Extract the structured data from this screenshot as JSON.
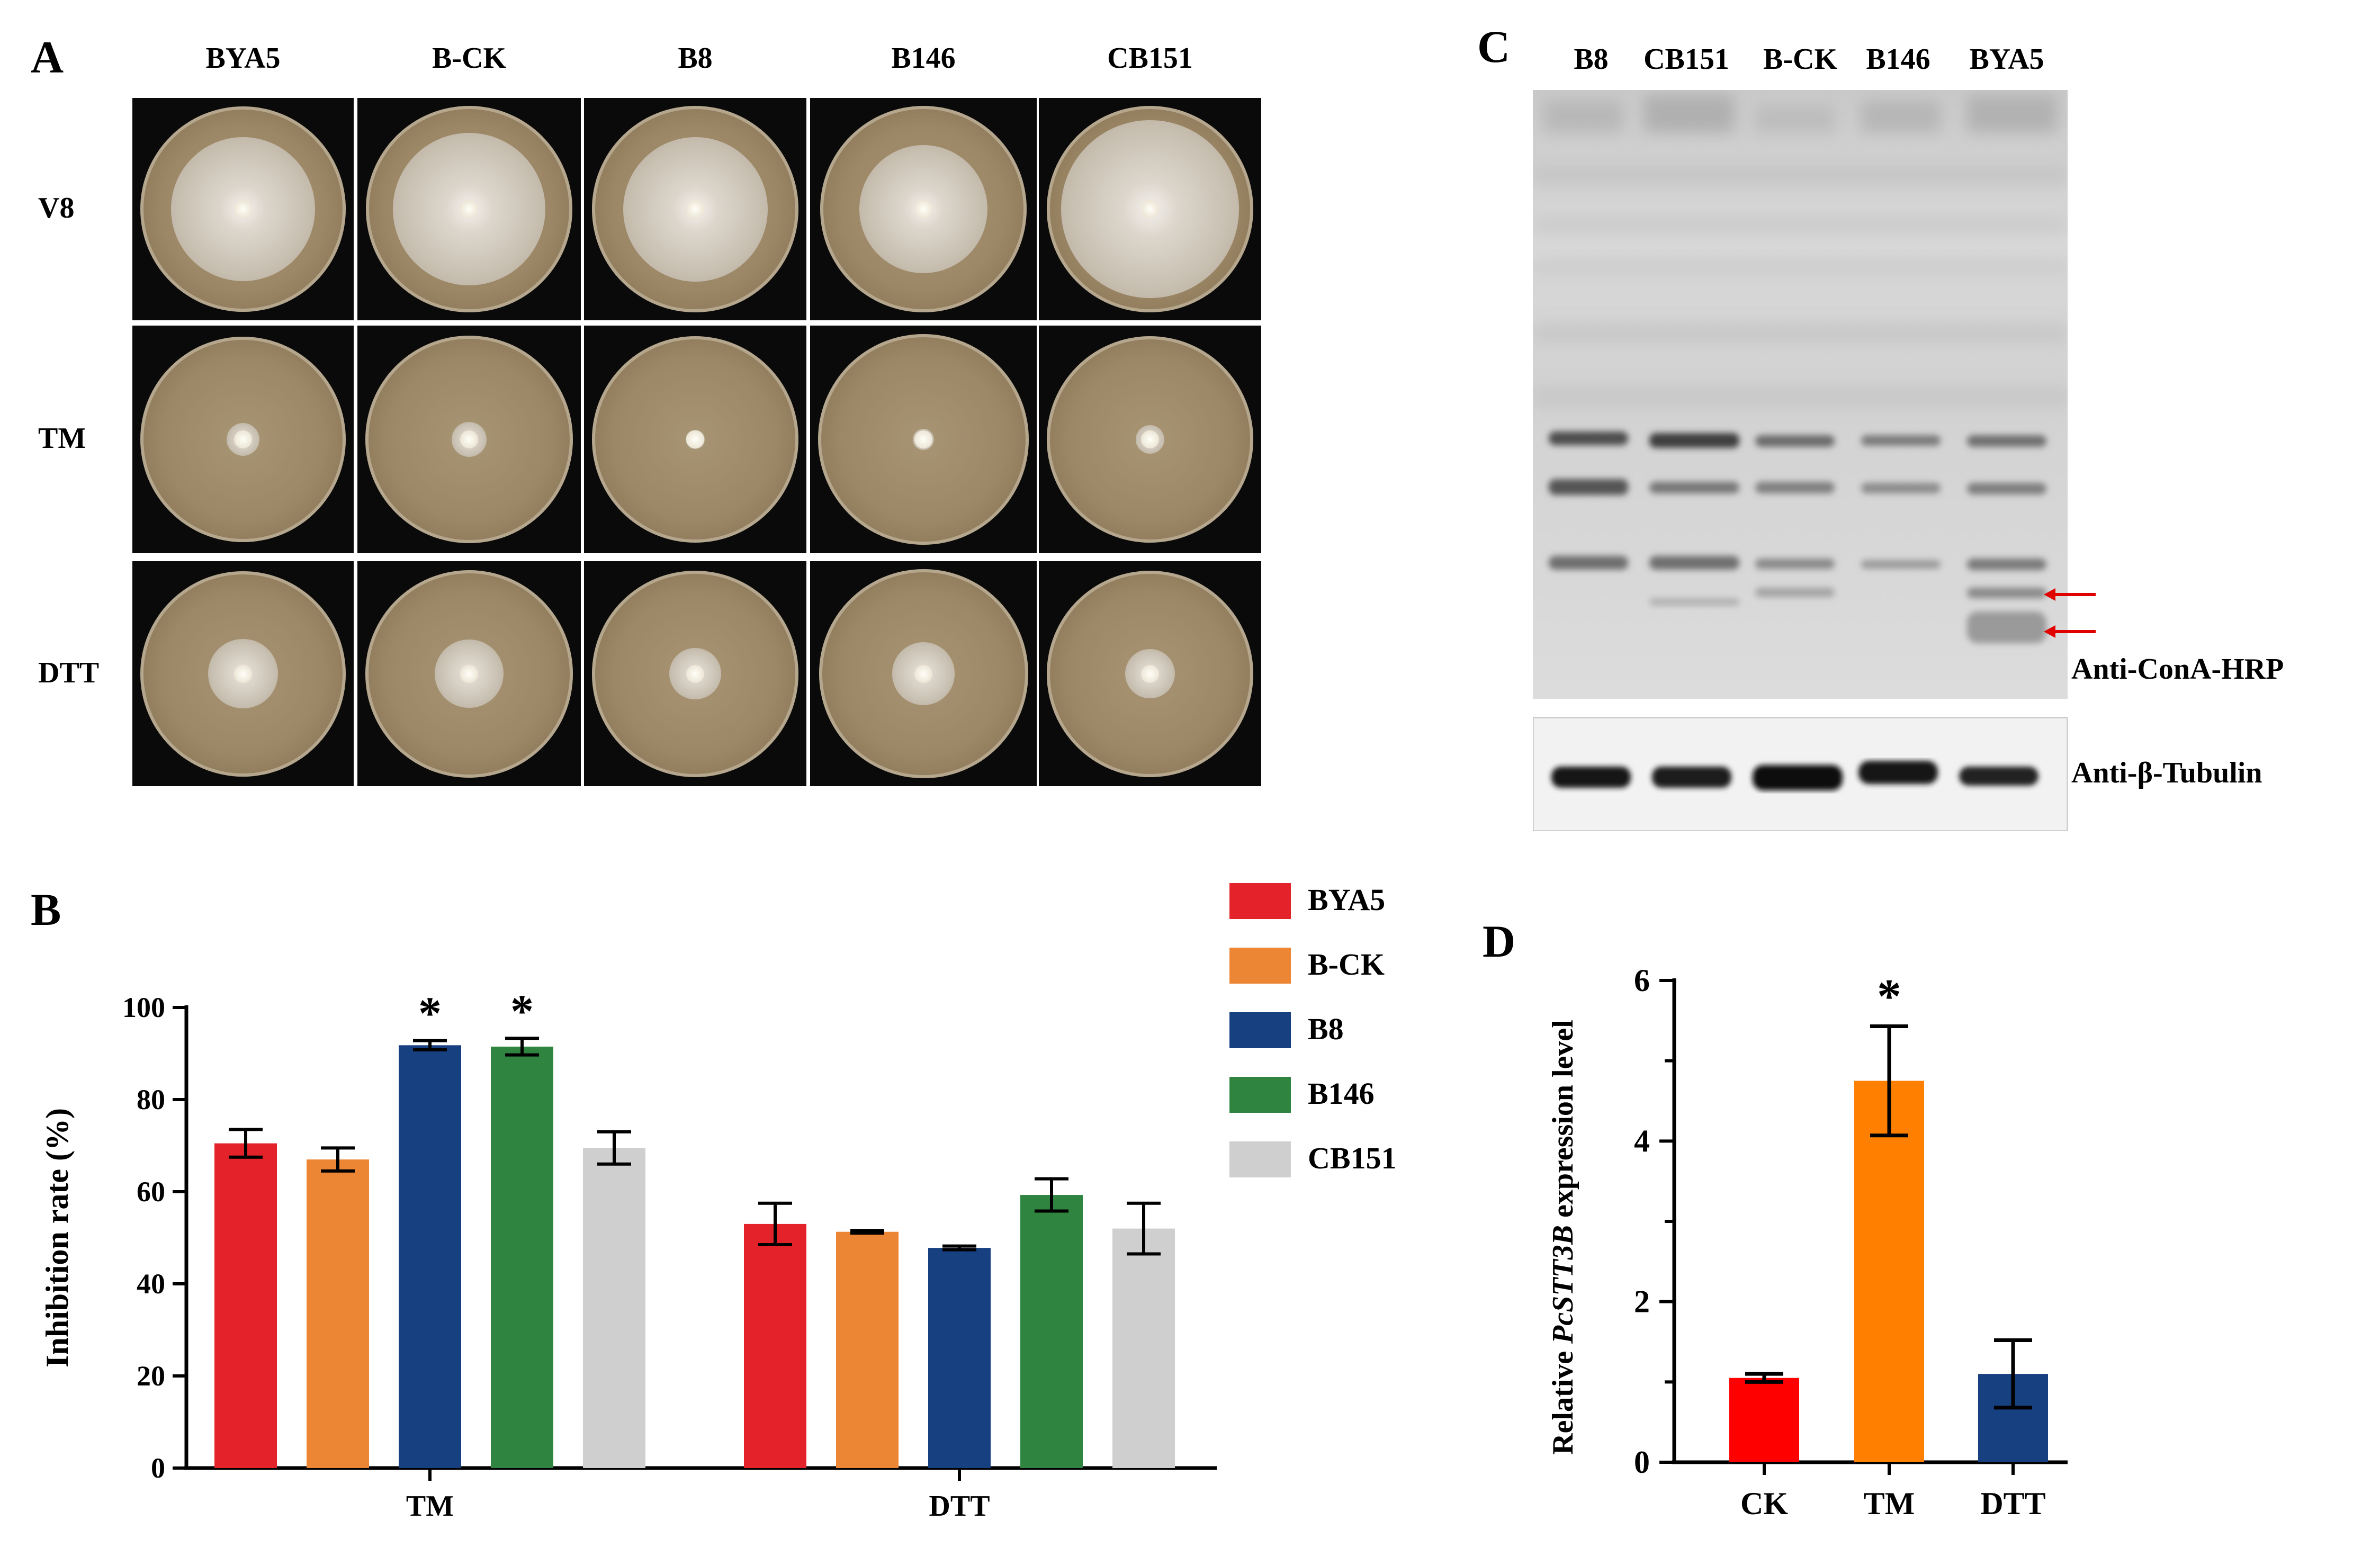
{
  "panels": {
    "A": {
      "letter": "A",
      "columns": [
        "BYA5",
        "B-CK",
        "B8",
        "B146",
        "CB151"
      ],
      "rows": [
        "V8",
        "TM",
        "DTT"
      ]
    },
    "B": {
      "letter": "B",
      "legend": [
        "BYA5",
        "B-CK",
        "B8",
        "B146",
        "CB151"
      ]
    },
    "C": {
      "letter": "C",
      "lanes": [
        "B8",
        "CB151",
        "B-CK",
        "B146",
        "BYA5"
      ],
      "blot_labels": [
        "Anti-ConA-HRP",
        "Anti-β-Tubulin"
      ]
    },
    "D": {
      "letter": "D"
    }
  },
  "colors": {
    "BYA5": "#e32329",
    "B-CK": "#ed8634",
    "B8": "#174081",
    "B146": "#2f8540",
    "CB151": "#cfcfcf",
    "D_CK": "#ff0000",
    "D_TM": "#ff8000",
    "D_DTT": "#174081",
    "arrow": "#e00000"
  },
  "chart_data": [
    {
      "panel": "B",
      "type": "bar",
      "categories": [
        "TM",
        "DTT"
      ],
      "ylabel": "Inhibition rate (%)",
      "ylim": [
        0,
        100
      ],
      "yticks": [
        0,
        20,
        40,
        60,
        80,
        100
      ],
      "series": [
        {
          "name": "BYA5",
          "values": [
            70.5,
            53.0
          ],
          "errors": [
            3.0,
            4.5
          ]
        },
        {
          "name": "B-CK",
          "values": [
            67.0,
            51.3
          ],
          "errors": [
            2.5,
            0.3
          ]
        },
        {
          "name": "B8",
          "values": [
            91.8,
            47.8
          ],
          "errors": [
            1.0,
            0.4
          ]
        },
        {
          "name": "B146",
          "values": [
            91.5,
            59.3
          ],
          "errors": [
            1.8,
            3.5
          ]
        },
        {
          "name": "CB151",
          "values": [
            69.5,
            52.0
          ],
          "errors": [
            3.5,
            5.5
          ]
        }
      ],
      "significance": [
        {
          "category": "TM",
          "series": "B8",
          "mark": "*"
        },
        {
          "category": "TM",
          "series": "B146",
          "mark": "*"
        }
      ],
      "legend": "right"
    },
    {
      "panel": "D",
      "type": "bar",
      "categories": [
        "CK",
        "TM",
        "DTT"
      ],
      "values": [
        1.05,
        4.75,
        1.1
      ],
      "errors": [
        0.05,
        0.68,
        0.42
      ],
      "ylabel_prefix": "Relative ",
      "ylabel_italic": "PcSTT3B",
      "ylabel_suffix": " expression level",
      "ylim": [
        0,
        6
      ],
      "yticks": [
        0,
        2,
        4,
        6
      ],
      "significance": [
        {
          "category": "TM",
          "mark": "*"
        }
      ]
    }
  ]
}
